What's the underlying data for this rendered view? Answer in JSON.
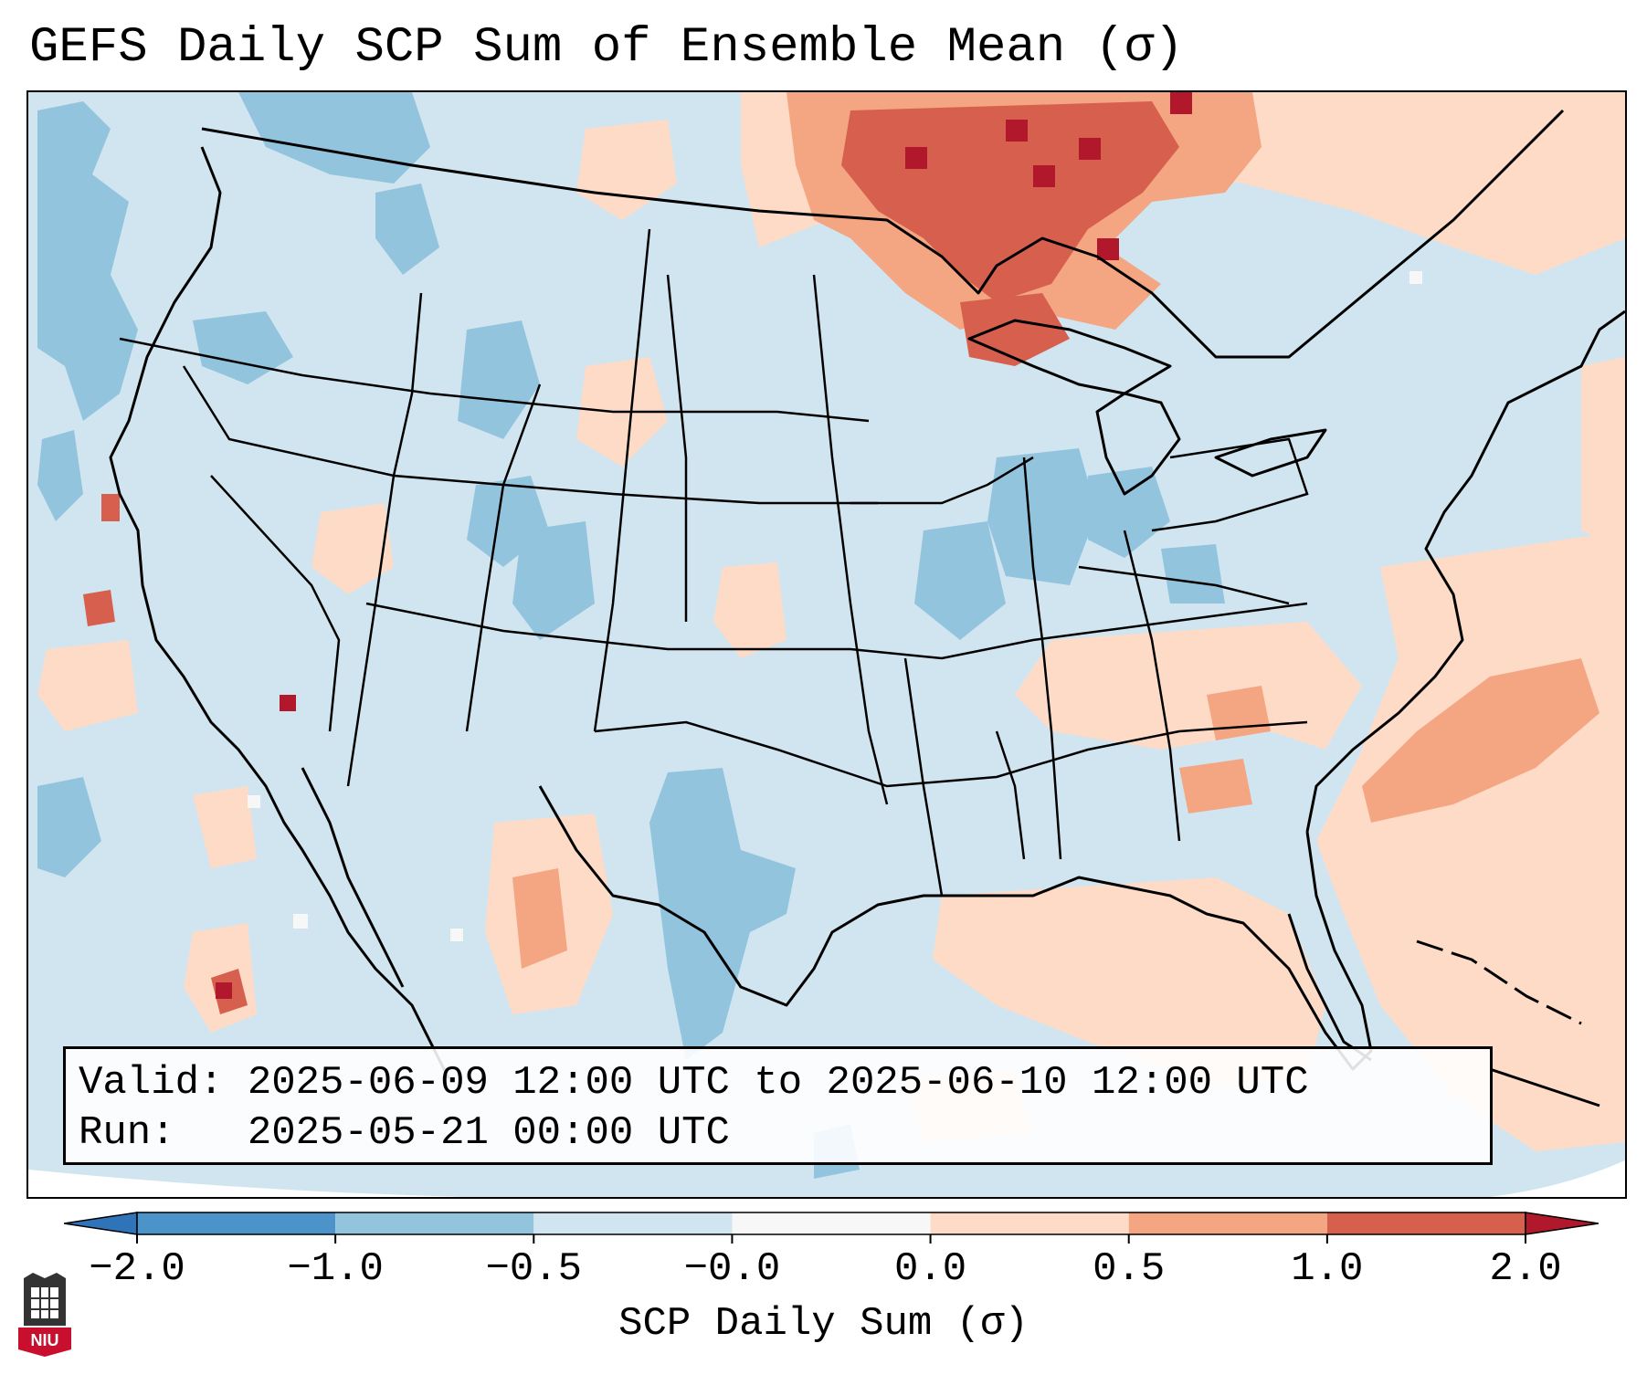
{
  "title": "GEFS Daily SCP Sum of Ensemble Mean (σ)",
  "info": {
    "valid_line": "Valid: 2025-06-09 12:00 UTC to 2025-06-10 12:00 UTC",
    "run_line": "Run:   2025-05-21 00:00 UTC"
  },
  "colorbar": {
    "label": "SCP Daily Sum (σ)",
    "ticks": [
      "−2.0",
      "−1.0",
      "−0.5",
      "−0.0",
      "0.0",
      "0.5",
      "1.0",
      "2.0"
    ],
    "bins": [
      {
        "range": "< -2.0",
        "color": "#2f74b8"
      },
      {
        "range": "-2.0 to -1.0",
        "color": "#4b93c8"
      },
      {
        "range": "-1.0 to -0.5",
        "color": "#92c4de"
      },
      {
        "range": "-0.5 to -0.0",
        "color": "#d1e5f0"
      },
      {
        "range": "-0.0 to 0.0",
        "color": "#f7f7f7"
      },
      {
        "range": "0.0 to 0.5",
        "color": "#fddbc7"
      },
      {
        "range": "0.5 to 1.0",
        "color": "#f4a582"
      },
      {
        "range": "1.0 to 2.0",
        "color": "#d6604d"
      },
      {
        "range": "> 2.0",
        "color": "#b2182b"
      }
    ]
  },
  "logo": {
    "text": "NIU",
    "color": "#c8102e"
  }
}
